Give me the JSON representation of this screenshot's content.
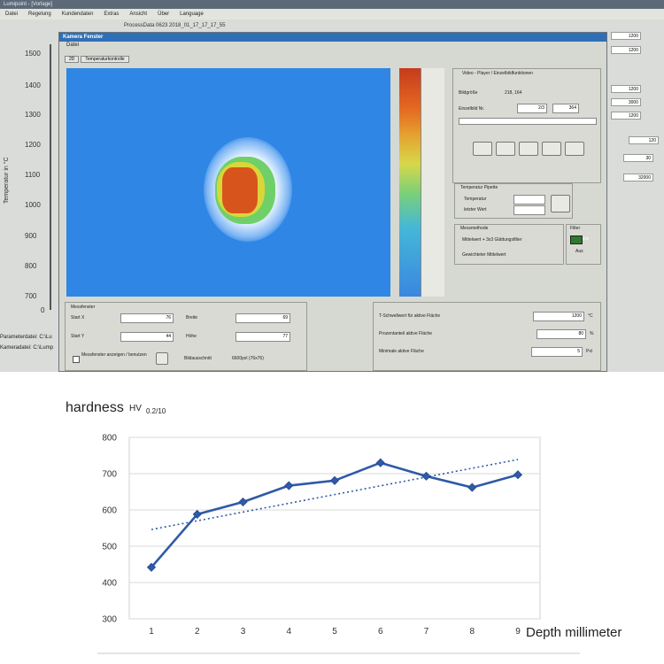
{
  "screenshot": {
    "window_title": "Lumipoint - [Vorlage]",
    "menu": [
      "Datei",
      "Regelung",
      "Kundendaten",
      "Extras",
      "Ansicht",
      "Über",
      "Language"
    ],
    "process_line": "ProcessData 0623 2018_01_17_17_17_55",
    "temp_axis_label": "Temperatur in °C",
    "temp_ticks": [
      "1500",
      "1400",
      "1300",
      "1200",
      "1100",
      "1000",
      "900",
      "800",
      "700",
      "0"
    ],
    "param_file": "Parameterdatei: C:\\Lu",
    "camera_file": "Kameradatei: C:\\Lump",
    "camera_window_title": "Kamera Fenster",
    "camera_menu": "Datei",
    "tabs": [
      "2D",
      "Temperaturkontrolle"
    ],
    "video_section": "Video - Player / Einzelbildfunktionen",
    "image_size_label": "Bildgröße",
    "image_size_value": "218, 164",
    "frame_label": "Einzelbild Nr.",
    "frame_value_a": "2/3",
    "frame_value_b": "364",
    "temp_pipette_section": "Temperatur Pipette",
    "temperature_label": "Temperatur",
    "last_value_label": "letzter Wert",
    "method_section": "Messmethode",
    "method_option_1": "Mittelwert + 3x3 Glättungsfilter",
    "method_option_2": "Gewichteter Mittelwert",
    "filter_section": "Filter",
    "filter_on": "Ein",
    "filter_off": "Aus",
    "measure_section": "Messfenster",
    "start_x_label": "Start X",
    "start_x": "76",
    "start_y_label": "Start Y",
    "start_y": "44",
    "width_label": "Breite",
    "width": "69",
    "height_label": "Höhe",
    "height": "77",
    "show_window_label": "Messfenster anzeigen / benutzen",
    "image_section_label": "Bildausschnitt",
    "image_section_value": "6600pxl (76x76)",
    "threshold_label": "T-Schwellwert für aktive Fläche",
    "threshold_value": "1200",
    "threshold_unit": "°C",
    "percent_label": "Prozentanteil aktive Fläche",
    "percent_value": "80",
    "percent_unit": "%",
    "min_area_label": "Minimale aktive Fläche",
    "min_area_value": "5",
    "min_area_unit": "Pxl",
    "right_values": [
      "1200",
      "1200",
      "1200",
      "3000",
      "1200",
      "120",
      "30",
      "32000"
    ]
  },
  "chart_data": {
    "type": "line",
    "title": "hardness",
    "title_sub": "HV",
    "title_sub2": "0.2/10",
    "xlabel": "Depth millimeter",
    "ylabel": "",
    "categories": [
      "1",
      "2",
      "3",
      "4",
      "5",
      "6",
      "7",
      "8",
      "9"
    ],
    "series": [
      {
        "name": "",
        "values": [
          442,
          588,
          622,
          667,
          681,
          730,
          693,
          662,
          697
        ],
        "color": "#2f5aa8",
        "marker": "diamond"
      }
    ],
    "trendline": {
      "type": "linear",
      "style": "dotted",
      "color": "#2f5aa8"
    },
    "ylim": [
      300,
      800
    ],
    "yticks": [
      "300",
      "400",
      "500",
      "600",
      "700",
      "800"
    ],
    "grid": true
  }
}
